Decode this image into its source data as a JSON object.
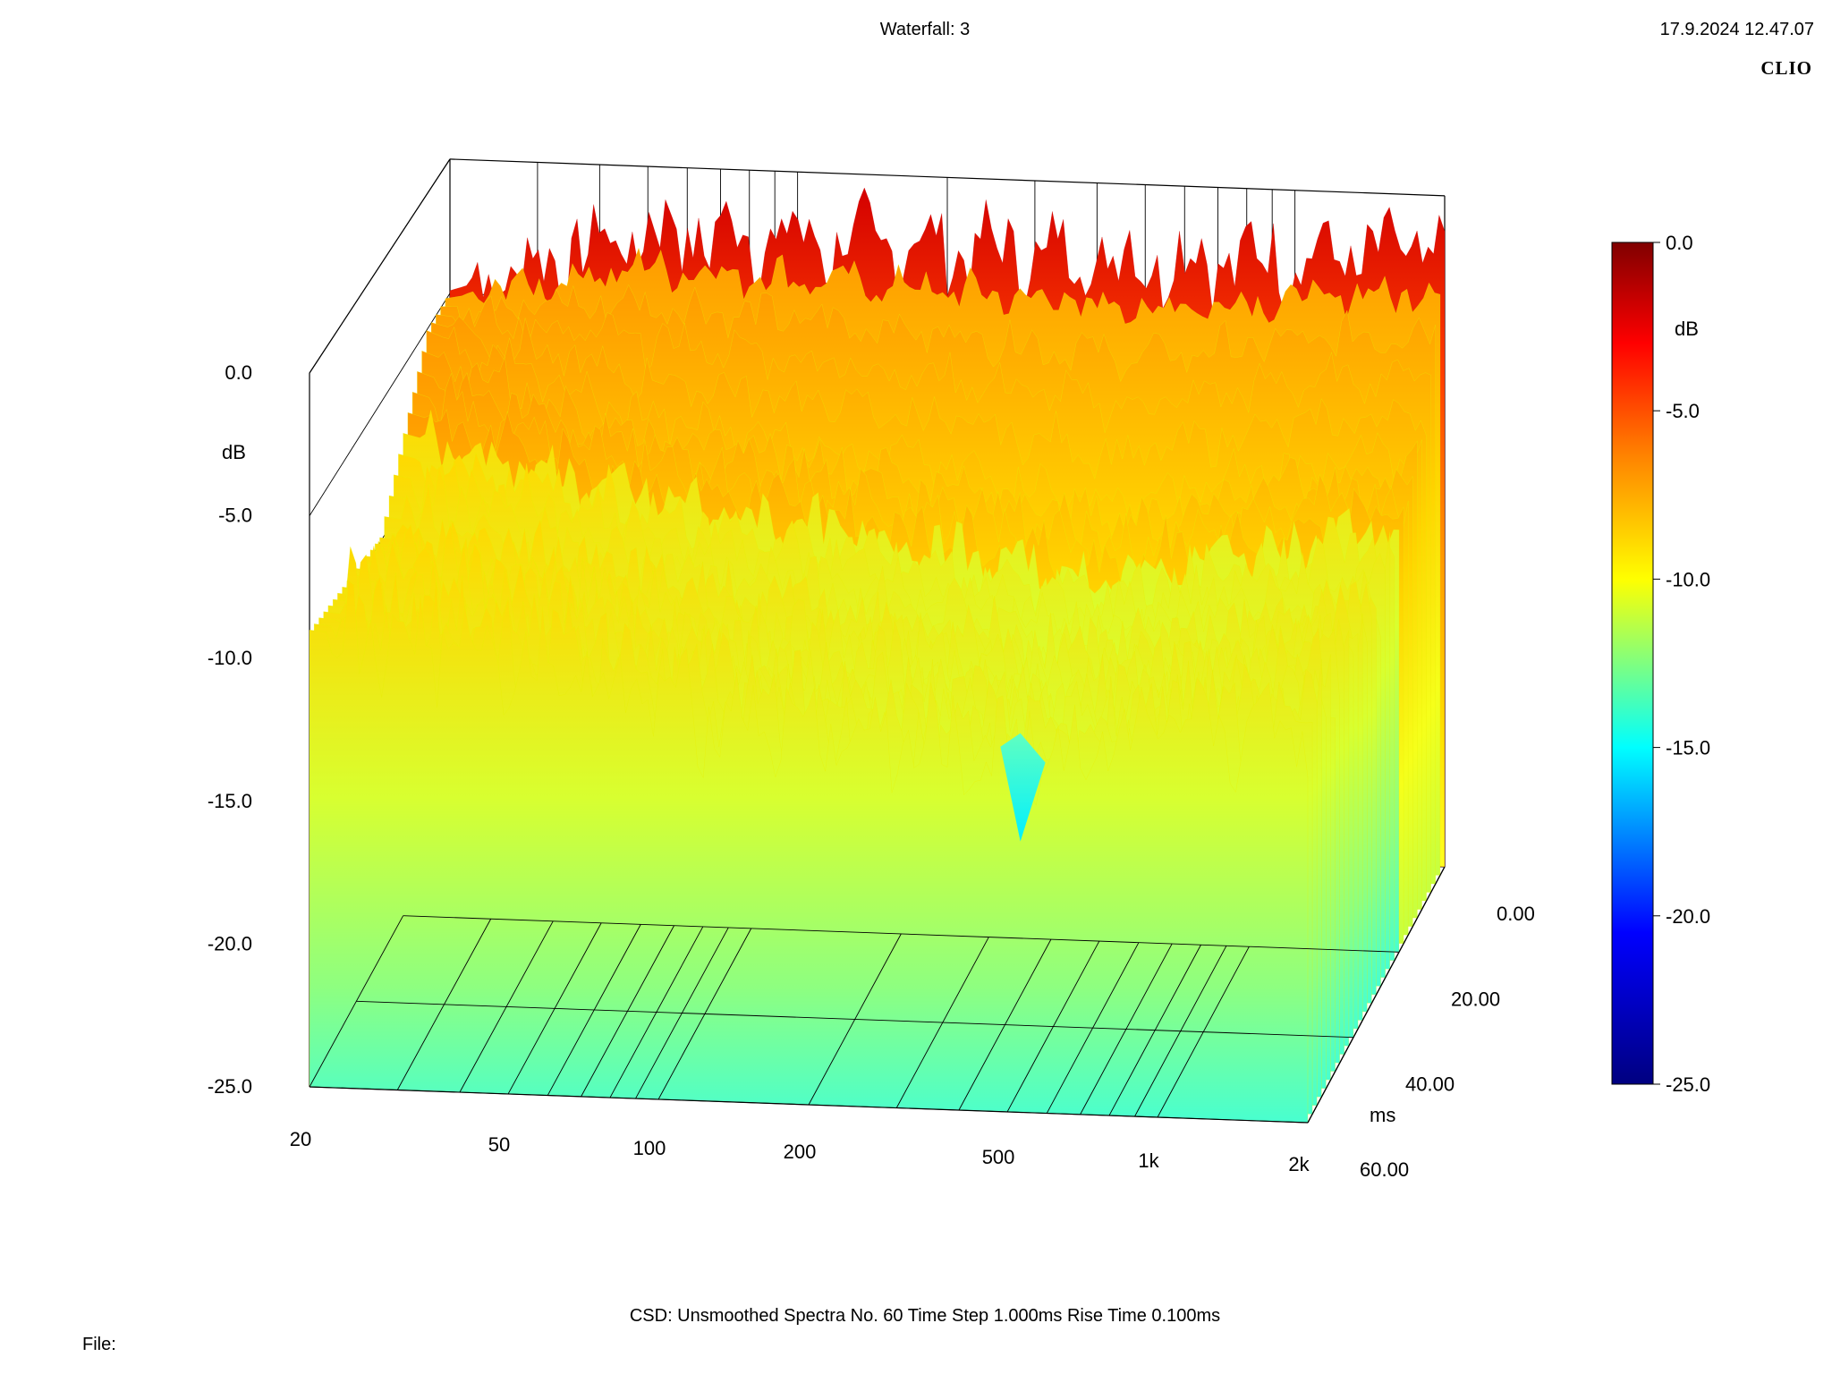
{
  "header": {
    "title": "Waterfall: 3",
    "timestamp": "17.9.2024 12.47.07",
    "brand": "CLIO"
  },
  "footer": {
    "info": "CSD:   Unsmoothed   Spectra No. 60   Time Step 1.000ms   Rise Time 0.100ms",
    "file_label": "File:"
  },
  "colors": {
    "axis_lines": "#000000",
    "scale": [
      "#000080",
      "#0000ff",
      "#00ffff",
      "#ffff00",
      "#ff8000",
      "#ff0000",
      "#800000"
    ]
  },
  "chart_data": {
    "type": "waterfall",
    "title": "Waterfall: 3",
    "x_axis": {
      "unit": "Hz",
      "scale": "log",
      "range": [
        20,
        2000
      ],
      "ticks": [
        20,
        50,
        100,
        200,
        500,
        1000,
        2000
      ],
      "tick_labels": [
        "20",
        "50",
        "100",
        "200",
        "500",
        "1k",
        "2k"
      ]
    },
    "z_axis": {
      "label": "ms",
      "range": [
        0,
        60
      ],
      "ticks": [
        0,
        20,
        40,
        60
      ],
      "tick_labels": [
        "0.00",
        "20.00",
        "40.00",
        "60.00"
      ]
    },
    "y_axis": {
      "label": "dB",
      "range": [
        -25,
        0
      ],
      "ticks": [
        0,
        -5,
        -10,
        -15,
        -20,
        -25
      ],
      "tick_labels": [
        "0.0",
        "-5.0",
        "-10.0",
        "-15.0",
        "-20.0",
        "-25.0"
      ]
    },
    "colorbar": {
      "label": "dB",
      "range": [
        -25,
        0
      ],
      "ticks": [
        0,
        -5,
        -10,
        -15,
        -20,
        -25
      ],
      "tick_labels": [
        "0.0",
        "-5.0",
        "-10.0",
        "-15.0",
        "-20.0",
        "-25.0"
      ]
    },
    "spectra_count": 60,
    "time_step_ms": 1.0,
    "rise_time_ms": 0.1,
    "slices": [
      {
        "time_ms": 0,
        "freq_hz": [
          20,
          50,
          100,
          200,
          500,
          1000,
          2000
        ],
        "level_db": [
          -4.9,
          -2.4,
          -2.5,
          -2.6,
          -2.8,
          -2.5,
          -2.0
        ]
      },
      {
        "time_ms": 10,
        "freq_hz": [
          20,
          50,
          100,
          200,
          500,
          1000,
          2000
        ],
        "level_db": [
          -5.0,
          -7.8,
          -8.4,
          -9.2,
          -10.5,
          -9.0,
          -8.2
        ]
      },
      {
        "time_ms": 30,
        "freq_hz": [
          20,
          50,
          100,
          200,
          500,
          1000,
          2000
        ],
        "level_db": [
          -9.8,
          -10.5,
          -11.6,
          -12.3,
          -13.2,
          -12.2,
          -11.0
        ]
      },
      {
        "time_ms": 60,
        "freq_hz": [
          20,
          50,
          100,
          200,
          500,
          1000,
          2000
        ],
        "level_db": [
          -9.0,
          -9.6,
          -11.0,
          -11.9,
          -12.6,
          -11.8,
          -10.9
        ]
      }
    ]
  }
}
